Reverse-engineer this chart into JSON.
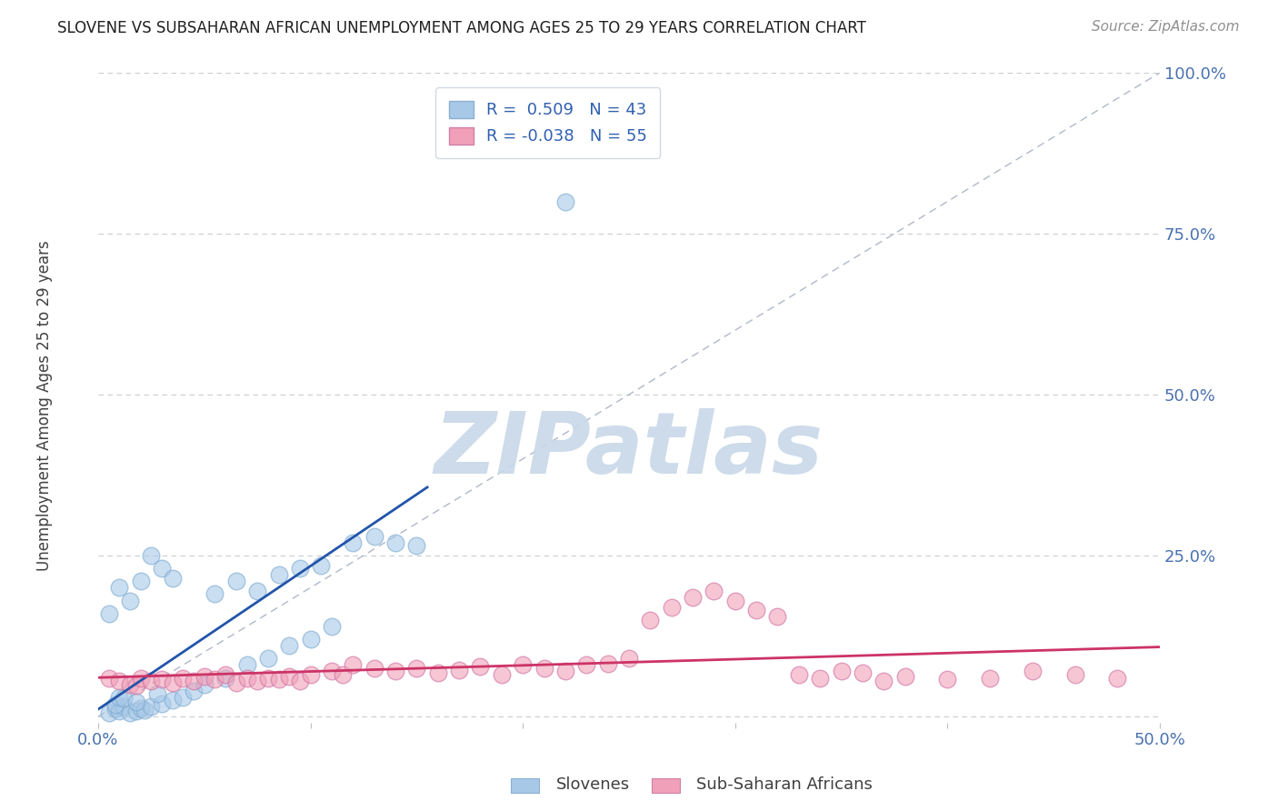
{
  "title": "SLOVENE VS SUBSAHARAN AFRICAN UNEMPLOYMENT AMONG AGES 25 TO 29 YEARS CORRELATION CHART",
  "source": "Source: ZipAtlas.com",
  "xlim": [
    0.0,
    0.5
  ],
  "ylim": [
    -0.01,
    1.0
  ],
  "legend_R": [
    "R =  0.509",
    "R = -0.038"
  ],
  "legend_N": [
    "N = 43",
    "N = 55"
  ],
  "blue_color": "#a8c8e8",
  "pink_color": "#f0a0b8",
  "blue_line_color": "#2255aa",
  "pink_line_color": "#cc3366",
  "ref_line_color": "#b0b8c8",
  "watermark": "ZIPatlas",
  "watermark_color": "#c8d8e8",
  "slovene_points": [
    [
      0.005,
      0.005
    ],
    [
      0.008,
      0.012
    ],
    [
      0.01,
      0.008
    ],
    [
      0.012,
      0.015
    ],
    [
      0.008,
      0.018
    ],
    [
      0.015,
      0.005
    ],
    [
      0.018,
      0.008
    ],
    [
      0.02,
      0.012
    ],
    [
      0.022,
      0.01
    ],
    [
      0.025,
      0.015
    ],
    [
      0.03,
      0.02
    ],
    [
      0.035,
      0.025
    ],
    [
      0.028,
      0.035
    ],
    [
      0.01,
      0.03
    ],
    [
      0.012,
      0.028
    ],
    [
      0.018,
      0.022
    ],
    [
      0.04,
      0.03
    ],
    [
      0.045,
      0.04
    ],
    [
      0.05,
      0.05
    ],
    [
      0.06,
      0.06
    ],
    [
      0.07,
      0.08
    ],
    [
      0.08,
      0.09
    ],
    [
      0.09,
      0.11
    ],
    [
      0.1,
      0.12
    ],
    [
      0.11,
      0.14
    ],
    [
      0.005,
      0.16
    ],
    [
      0.01,
      0.2
    ],
    [
      0.015,
      0.18
    ],
    [
      0.02,
      0.21
    ],
    [
      0.025,
      0.25
    ],
    [
      0.03,
      0.23
    ],
    [
      0.035,
      0.215
    ],
    [
      0.055,
      0.19
    ],
    [
      0.065,
      0.21
    ],
    [
      0.075,
      0.195
    ],
    [
      0.085,
      0.22
    ],
    [
      0.095,
      0.23
    ],
    [
      0.105,
      0.235
    ],
    [
      0.12,
      0.27
    ],
    [
      0.13,
      0.28
    ],
    [
      0.14,
      0.27
    ],
    [
      0.15,
      0.265
    ],
    [
      0.22,
      0.8
    ]
  ],
  "subsaharan_points": [
    [
      0.005,
      0.06
    ],
    [
      0.01,
      0.055
    ],
    [
      0.015,
      0.05
    ],
    [
      0.018,
      0.048
    ],
    [
      0.02,
      0.06
    ],
    [
      0.025,
      0.055
    ],
    [
      0.03,
      0.058
    ],
    [
      0.035,
      0.052
    ],
    [
      0.04,
      0.06
    ],
    [
      0.045,
      0.055
    ],
    [
      0.05,
      0.062
    ],
    [
      0.055,
      0.058
    ],
    [
      0.06,
      0.065
    ],
    [
      0.065,
      0.052
    ],
    [
      0.07,
      0.06
    ],
    [
      0.075,
      0.055
    ],
    [
      0.08,
      0.06
    ],
    [
      0.085,
      0.058
    ],
    [
      0.09,
      0.062
    ],
    [
      0.095,
      0.055
    ],
    [
      0.1,
      0.065
    ],
    [
      0.11,
      0.07
    ],
    [
      0.115,
      0.065
    ],
    [
      0.12,
      0.08
    ],
    [
      0.13,
      0.075
    ],
    [
      0.14,
      0.07
    ],
    [
      0.15,
      0.075
    ],
    [
      0.16,
      0.068
    ],
    [
      0.17,
      0.072
    ],
    [
      0.18,
      0.078
    ],
    [
      0.19,
      0.065
    ],
    [
      0.2,
      0.08
    ],
    [
      0.21,
      0.075
    ],
    [
      0.22,
      0.07
    ],
    [
      0.23,
      0.08
    ],
    [
      0.24,
      0.082
    ],
    [
      0.25,
      0.09
    ],
    [
      0.26,
      0.15
    ],
    [
      0.27,
      0.17
    ],
    [
      0.28,
      0.185
    ],
    [
      0.29,
      0.195
    ],
    [
      0.3,
      0.18
    ],
    [
      0.31,
      0.165
    ],
    [
      0.32,
      0.155
    ],
    [
      0.33,
      0.065
    ],
    [
      0.34,
      0.06
    ],
    [
      0.35,
      0.07
    ],
    [
      0.36,
      0.068
    ],
    [
      0.37,
      0.055
    ],
    [
      0.38,
      0.062
    ],
    [
      0.4,
      0.058
    ],
    [
      0.42,
      0.06
    ],
    [
      0.44,
      0.07
    ],
    [
      0.46,
      0.065
    ],
    [
      0.48,
      0.06
    ]
  ],
  "blue_regression": [
    0.0,
    0.155,
    -0.005,
    0.36
  ],
  "pink_regression": [
    0.0,
    0.5,
    0.065,
    0.06
  ]
}
